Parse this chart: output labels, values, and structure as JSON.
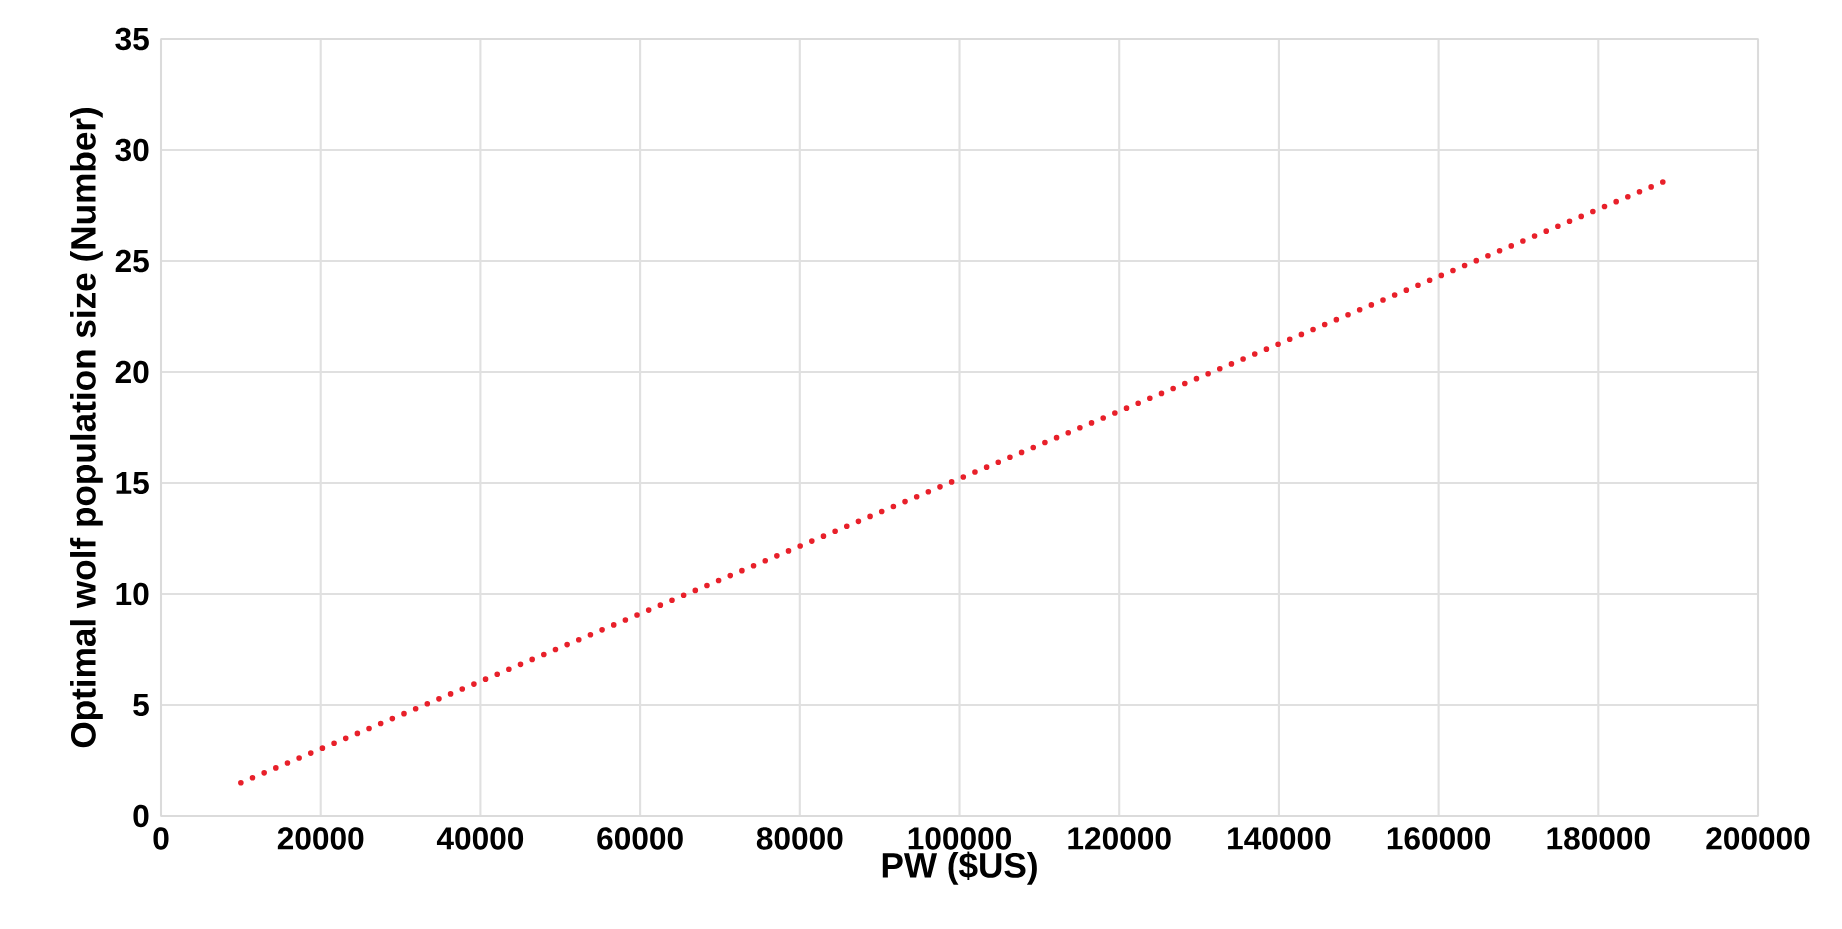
{
  "chart_data": {
    "type": "line",
    "xlabel": "PW ($US)",
    "ylabel": "Optimal wolf population size (Number)",
    "xlim": [
      0,
      200000
    ],
    "ylim": [
      0,
      35
    ],
    "xticks": [
      0,
      20000,
      40000,
      60000,
      80000,
      100000,
      120000,
      140000,
      160000,
      180000,
      200000
    ],
    "yticks": [
      0,
      5,
      10,
      15,
      20,
      25,
      30,
      35
    ],
    "grid": true,
    "marker": "none",
    "line_style": "dotted",
    "series": [
      {
        "color": "#e8202a",
        "x": [
          10000,
          100000,
          189000
        ],
        "values": [
          1.5,
          15.2,
          28.7
        ]
      }
    ]
  }
}
